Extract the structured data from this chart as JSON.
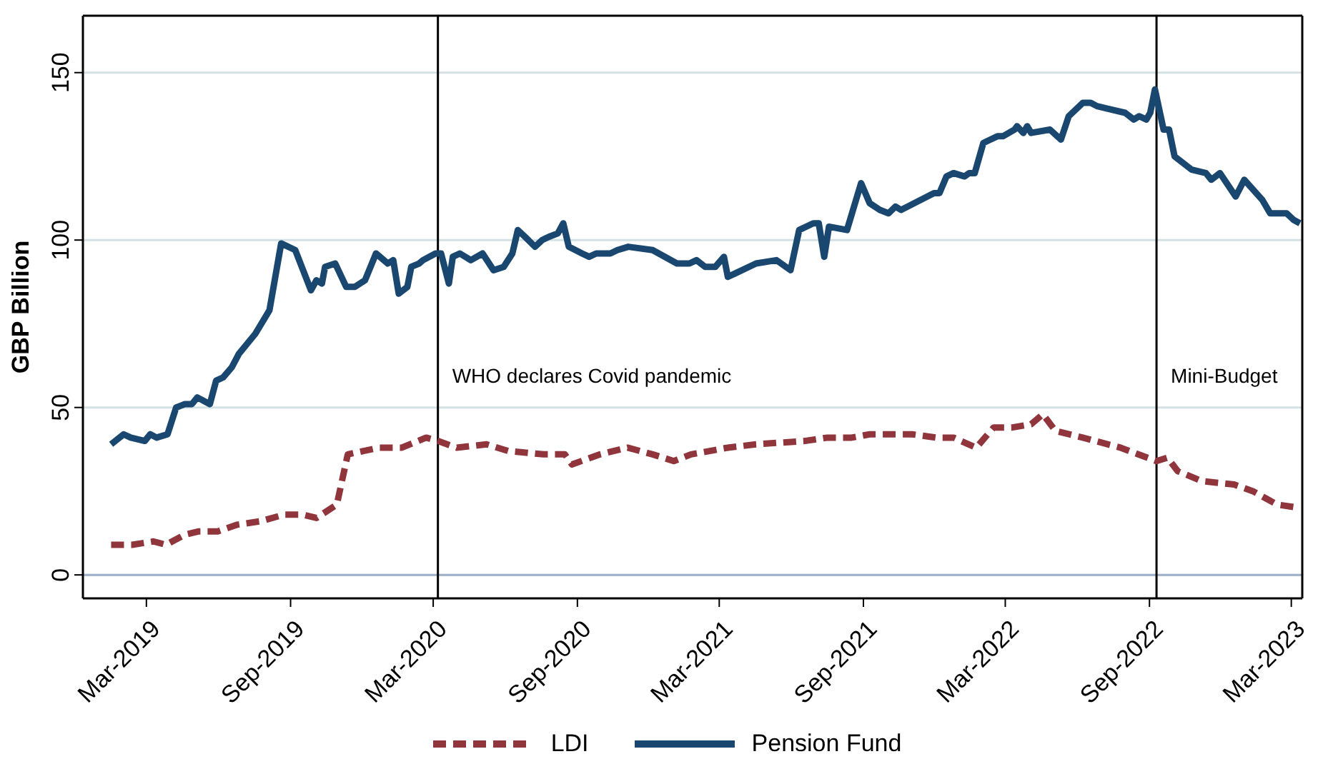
{
  "chart_data": {
    "type": "line",
    "ylabel": "GBP Billion",
    "xlim": [
      "2018-12-10",
      "2023-03-15"
    ],
    "ylim": [
      -7,
      167
    ],
    "yticks": [
      0,
      50,
      100,
      150
    ],
    "xticks": [
      {
        "value": "2019-03-01",
        "label": "Mar-2019"
      },
      {
        "value": "2019-09-01",
        "label": "Sep-2019"
      },
      {
        "value": "2020-03-01",
        "label": "Mar-2020"
      },
      {
        "value": "2020-09-01",
        "label": "Sep-2020"
      },
      {
        "value": "2021-03-01",
        "label": "Mar-2021"
      },
      {
        "value": "2021-09-01",
        "label": "Sep-2021"
      },
      {
        "value": "2022-03-01",
        "label": "Mar-2022"
      },
      {
        "value": "2022-09-01",
        "label": "Sep-2022"
      },
      {
        "value": "2023-03-01",
        "label": "Mar-2023"
      }
    ],
    "grid": "y",
    "legend": "bottom",
    "ref_lines": [
      {
        "axis": "y",
        "value": 0,
        "color": "#9fb0c8"
      },
      {
        "axis": "x",
        "value": "2020-03-07",
        "label": "WHO declares Covid pandemic",
        "color": "#000000"
      },
      {
        "axis": "x",
        "value": "2022-09-10",
        "label": "Mini-Budget",
        "color": "#000000"
      }
    ],
    "series": [
      {
        "name": "LDI",
        "color": "#90353b",
        "line_style": "dashed",
        "x": [
          "2019-01-15",
          "2019-02-11",
          "2019-03-10",
          "2019-03-26",
          "2019-04-19",
          "2019-05-07",
          "2019-05-31",
          "2019-06-25",
          "2019-07-24",
          "2019-08-24",
          "2019-09-16",
          "2019-10-04",
          "2019-10-30",
          "2019-11-13",
          "2019-12-23",
          "2020-01-21",
          "2020-02-21",
          "2020-03-07",
          "2020-03-31",
          "2020-05-08",
          "2020-06-05",
          "2020-07-20",
          "2020-08-16",
          "2020-08-25",
          "2020-09-30",
          "2020-11-04",
          "2020-12-06",
          "2021-01-02",
          "2021-01-24",
          "2021-03-12",
          "2021-04-17",
          "2021-06-18",
          "2021-07-17",
          "2021-08-17",
          "2021-09-09",
          "2021-11-02",
          "2021-12-03",
          "2021-12-25",
          "2022-01-23",
          "2022-02-14",
          "2022-03-09",
          "2022-04-03",
          "2022-04-18",
          "2022-05-04",
          "2022-06-08",
          "2022-07-26",
          "2022-09-10",
          "2022-09-24",
          "2022-10-07",
          "2022-11-07",
          "2022-12-18",
          "2023-01-11",
          "2023-02-11",
          "2023-03-12"
        ],
        "values": [
          9,
          9,
          10,
          9,
          12,
          13,
          13,
          15,
          16,
          18,
          18,
          17,
          21,
          36,
          38,
          38,
          41,
          40,
          38,
          39,
          37,
          36,
          36,
          33,
          36,
          38,
          36,
          34,
          36,
          38,
          39,
          40,
          41,
          41,
          42,
          42,
          41,
          41,
          38,
          44,
          44,
          45,
          48,
          43,
          41,
          38,
          34,
          35,
          31,
          28,
          27,
          25,
          21,
          20
        ]
      },
      {
        "name": "Pension Fund",
        "color": "#1a476f",
        "line_style": "solid",
        "x": [
          "2019-01-15",
          "2019-01-31",
          "2019-02-09",
          "2019-02-27",
          "2019-03-06",
          "2019-03-14",
          "2019-03-28",
          "2019-04-08",
          "2019-04-19",
          "2019-04-28",
          "2019-05-05",
          "2019-05-21",
          "2019-05-29",
          "2019-06-07",
          "2019-06-18",
          "2019-06-27",
          "2019-07-18",
          "2019-08-05",
          "2019-08-20",
          "2019-09-07",
          "2019-09-27",
          "2019-10-04",
          "2019-10-11",
          "2019-10-15",
          "2019-10-28",
          "2019-11-11",
          "2019-11-22",
          "2019-12-05",
          "2019-12-19",
          "2020-01-03",
          "2020-01-10",
          "2020-01-17",
          "2020-01-28",
          "2020-02-02",
          "2020-02-12",
          "2020-02-17",
          "2020-03-04",
          "2020-03-11",
          "2020-03-21",
          "2020-03-26",
          "2020-04-04",
          "2020-04-18",
          "2020-05-03",
          "2020-05-17",
          "2020-05-30",
          "2020-06-10",
          "2020-06-17",
          "2020-06-26",
          "2020-07-09",
          "2020-07-18",
          "2020-07-27",
          "2020-08-07",
          "2020-08-14",
          "2020-08-21",
          "2020-09-07",
          "2020-09-16",
          "2020-09-25",
          "2020-10-13",
          "2020-10-22",
          "2020-11-05",
          "2020-12-06",
          "2021-01-06",
          "2021-01-22",
          "2021-01-31",
          "2021-02-11",
          "2021-02-24",
          "2021-03-07",
          "2021-03-12",
          "2021-03-21",
          "2021-04-17",
          "2021-05-13",
          "2021-05-31",
          "2021-06-11",
          "2021-06-29",
          "2021-07-06",
          "2021-07-13",
          "2021-07-19",
          "2021-08-11",
          "2021-08-29",
          "2021-09-09",
          "2021-09-22",
          "2021-10-03",
          "2021-10-12",
          "2021-10-19",
          "2021-11-30",
          "2021-12-07",
          "2021-12-16",
          "2021-12-25",
          "2022-01-08",
          "2022-01-14",
          "2022-01-21",
          "2022-02-01",
          "2022-02-10",
          "2022-02-19",
          "2022-02-26",
          "2022-03-13",
          "2022-03-16",
          "2022-03-24",
          "2022-03-29",
          "2022-04-03",
          "2022-04-27",
          "2022-05-11",
          "2022-05-21",
          "2022-06-08",
          "2022-06-18",
          "2022-06-26",
          "2022-07-14",
          "2022-08-01",
          "2022-08-12",
          "2022-08-19",
          "2022-08-28",
          "2022-09-02",
          "2022-09-08",
          "2022-09-19",
          "2022-09-26",
          "2022-10-03",
          "2022-10-25",
          "2022-11-12",
          "2022-11-19",
          "2022-11-30",
          "2022-12-20",
          "2022-12-31",
          "2023-01-23",
          "2023-02-02",
          "2023-02-23",
          "2023-03-04",
          "2023-03-12"
        ],
        "values": [
          39,
          42,
          41,
          40,
          42,
          41,
          42,
          50,
          51,
          51,
          53,
          51,
          58,
          59,
          62,
          66,
          72,
          79,
          99,
          97,
          85,
          88,
          87,
          92,
          93,
          86,
          86,
          88,
          96,
          93,
          94,
          84,
          86,
          92,
          93,
          94,
          96,
          96,
          87,
          95,
          96,
          94,
          96,
          91,
          92,
          96,
          103,
          101,
          98,
          100,
          101,
          102,
          105,
          98,
          96,
          95,
          96,
          96,
          97,
          98,
          97,
          93,
          93,
          94,
          92,
          92,
          95,
          89,
          90,
          93,
          94,
          91,
          103,
          105,
          105,
          95,
          104,
          103,
          117,
          111,
          109,
          108,
          110,
          109,
          114,
          114,
          119,
          120,
          119,
          120,
          120,
          129,
          130,
          131,
          131,
          133,
          134,
          132,
          134,
          132,
          133,
          130,
          137,
          141,
          141,
          140,
          139,
          138,
          136,
          137,
          136,
          138,
          145,
          133,
          133,
          125,
          121,
          120,
          118,
          120,
          113,
          118,
          112,
          108,
          108,
          106,
          105
        ]
      }
    ]
  }
}
